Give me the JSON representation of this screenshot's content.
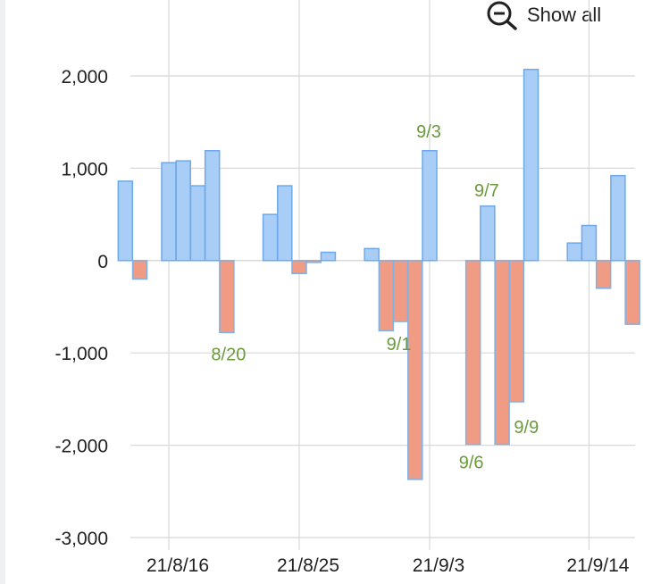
{
  "toolbar": {
    "show_all_label": "Show all",
    "show_all_icon": "zoom-out-icon"
  },
  "colors": {
    "positive_fill": "#a8cdf7",
    "positive_stroke": "#6fa8e8",
    "negative_fill": "#f09c84",
    "negative_stroke": "#7fb0e6",
    "label": "#6a9a3c",
    "grid": "#d8d8d8"
  },
  "chart_data": {
    "type": "bar",
    "title": "",
    "xlabel": "",
    "ylabel": "",
    "ylim": [
      -3000,
      2000
    ],
    "y_ticks": [
      {
        "value": 2000,
        "label": "2,000"
      },
      {
        "value": 1000,
        "label": "1,000"
      },
      {
        "value": 0,
        "label": "0"
      },
      {
        "value": -1000,
        "label": "-1,000"
      },
      {
        "value": -2000,
        "label": "-2,000"
      },
      {
        "value": -3000,
        "label": "-3,000"
      }
    ],
    "x_ticks": [
      {
        "date": "2021-08-16",
        "label": "21/8/16"
      },
      {
        "date": "2021-08-25",
        "label": "21/8/25"
      },
      {
        "date": "2021-09-03",
        "label": "21/9/3"
      },
      {
        "date": "2021-09-14",
        "label": "21/9/14"
      }
    ],
    "grid": true,
    "bars": [
      {
        "date": "2021-08-13",
        "value": 860,
        "label": ""
      },
      {
        "date": "2021-08-14",
        "value": -200,
        "label": ""
      },
      {
        "date": "2021-08-16",
        "value": 1060,
        "label": ""
      },
      {
        "date": "2021-08-17",
        "value": 1080,
        "label": ""
      },
      {
        "date": "2021-08-18",
        "value": 810,
        "label": ""
      },
      {
        "date": "2021-08-19",
        "value": 1190,
        "label": ""
      },
      {
        "date": "2021-08-20",
        "value": -780,
        "label": "8/20"
      },
      {
        "date": "2021-08-23",
        "value": 500,
        "label": ""
      },
      {
        "date": "2021-08-24",
        "value": 810,
        "label": ""
      },
      {
        "date": "2021-08-25",
        "value": -140,
        "label": ""
      },
      {
        "date": "2021-08-26",
        "value": -20,
        "label": ""
      },
      {
        "date": "2021-08-27",
        "value": 90,
        "label": ""
      },
      {
        "date": "2021-08-30",
        "value": 130,
        "label": ""
      },
      {
        "date": "2021-08-31",
        "value": -760,
        "label": ""
      },
      {
        "date": "2021-09-01",
        "value": -660,
        "label": "9/1"
      },
      {
        "date": "2021-09-02",
        "value": -2370,
        "label": ""
      },
      {
        "date": "2021-09-03",
        "value": 1190,
        "label": "9/3"
      },
      {
        "date": "2021-09-06",
        "value": -1990,
        "label": "9/6"
      },
      {
        "date": "2021-09-07",
        "value": 590,
        "label": "9/7"
      },
      {
        "date": "2021-09-08",
        "value": -1990,
        "label": ""
      },
      {
        "date": "2021-09-09",
        "value": -1530,
        "label": "9/9"
      },
      {
        "date": "2021-09-10",
        "value": 2070,
        "label": ""
      },
      {
        "date": "2021-09-13",
        "value": 190,
        "label": ""
      },
      {
        "date": "2021-09-14",
        "value": 380,
        "label": ""
      },
      {
        "date": "2021-09-15",
        "value": -300,
        "label": ""
      },
      {
        "date": "2021-09-16",
        "value": 920,
        "label": ""
      },
      {
        "date": "2021-09-17",
        "value": -690,
        "label": ""
      }
    ]
  }
}
